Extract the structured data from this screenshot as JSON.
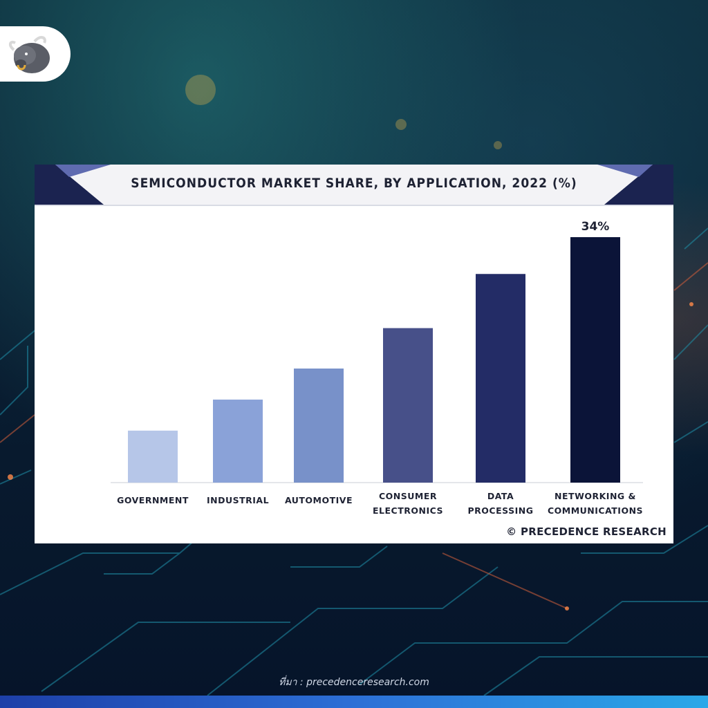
{
  "footer": {
    "source": "ที่มา : precedenceresearch.com"
  },
  "card": {
    "source_credit": "© PRECEDENCE RESEARCH"
  },
  "colors": {
    "header_accent": "#1b2350",
    "background": "#0b2236"
  },
  "logo": {
    "icon": "bull-icon"
  },
  "chart_data": {
    "type": "bar",
    "title": "SEMICONDUCTOR MARKET SHARE, BY APPLICATION, 2022 (%)",
    "xlabel": "",
    "ylabel": "",
    "ylim": [
      0,
      36
    ],
    "grid": false,
    "categories": [
      [
        "GOVERNMENT"
      ],
      [
        "INDUSTRIAL"
      ],
      [
        "AUTOMOTIVE"
      ],
      [
        "CONSUMER",
        "ELECTRONICS"
      ],
      [
        "DATA",
        "PROCESSING"
      ],
      [
        "NETWORKING &",
        "COMMUNICATIONS"
      ]
    ],
    "values": [
      7.2,
      11.5,
      15.8,
      21.4,
      28.9,
      34
    ],
    "data_labels": [
      "",
      "",
      "",
      "",
      "",
      "34%"
    ],
    "colors": [
      "#b6c6e8",
      "#8aa2d8",
      "#7891c9",
      "#475089",
      "#232c66",
      "#0b1438"
    ]
  }
}
